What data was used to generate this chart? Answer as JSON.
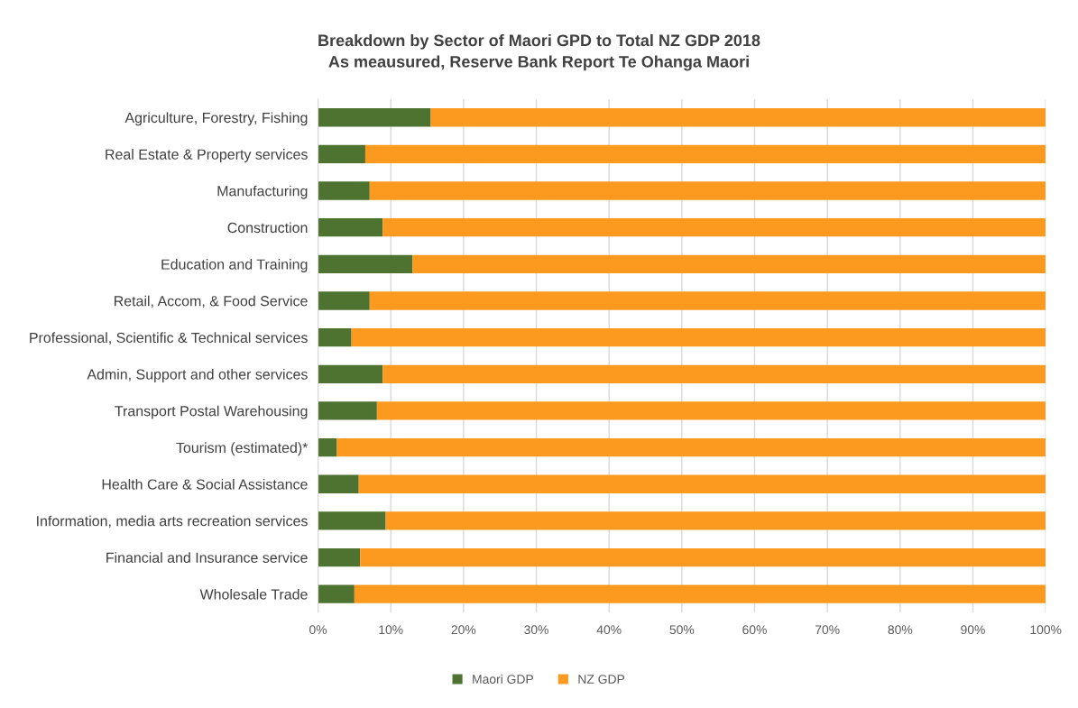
{
  "chart_data": {
    "type": "bar",
    "orientation": "horizontal",
    "stacked": true,
    "title": "Breakdown by Sector of Maori GPD to Total NZ GDP 2018",
    "subtitle": "As meausured, Reserve Bank Report Te Ohanga Maori",
    "categories": [
      "Agriculture, Forestry, Fishing",
      "Real Estate & Property services",
      "Manufacturing",
      "Construction",
      "Education and Training",
      "Retail, Accom, & Food Service",
      "Professional, Scientific & Technical services",
      "Admin, Support and other services",
      "Transport Postal Warehousing",
      "Tourism (estimated)*",
      "Health Care & Social Assistance",
      "Information, media arts recreation services",
      "Financial and Insurance service",
      "Wholesale Trade"
    ],
    "series": [
      {
        "name": "Maori GDP",
        "color": "#4e7330",
        "values": [
          15.5,
          6.5,
          7.1,
          8.9,
          13.0,
          7.1,
          4.6,
          8.9,
          8.1,
          2.6,
          5.6,
          9.3,
          5.8,
          5.0
        ]
      },
      {
        "name": "NZ GDP",
        "color": "#fb9a1f",
        "values": [
          84.5,
          93.5,
          92.9,
          91.1,
          87.0,
          92.9,
          95.4,
          91.1,
          91.9,
          97.4,
          94.4,
          90.7,
          94.2,
          95.0
        ]
      }
    ],
    "xlim": [
      0,
      100
    ],
    "xticks": [
      {
        "value": 0,
        "label": "0%"
      },
      {
        "value": 10,
        "label": "10%"
      },
      {
        "value": 20,
        "label": "20%"
      },
      {
        "value": 30,
        "label": "30%"
      },
      {
        "value": 40,
        "label": "40%"
      },
      {
        "value": 50,
        "label": "50%"
      },
      {
        "value": 60,
        "label": "60%"
      },
      {
        "value": 70,
        "label": "70%"
      },
      {
        "value": 80,
        "label": "80%"
      },
      {
        "value": 90,
        "label": "90%"
      },
      {
        "value": 100,
        "label": "100%"
      }
    ],
    "grid": "x",
    "legend": "bottom"
  }
}
